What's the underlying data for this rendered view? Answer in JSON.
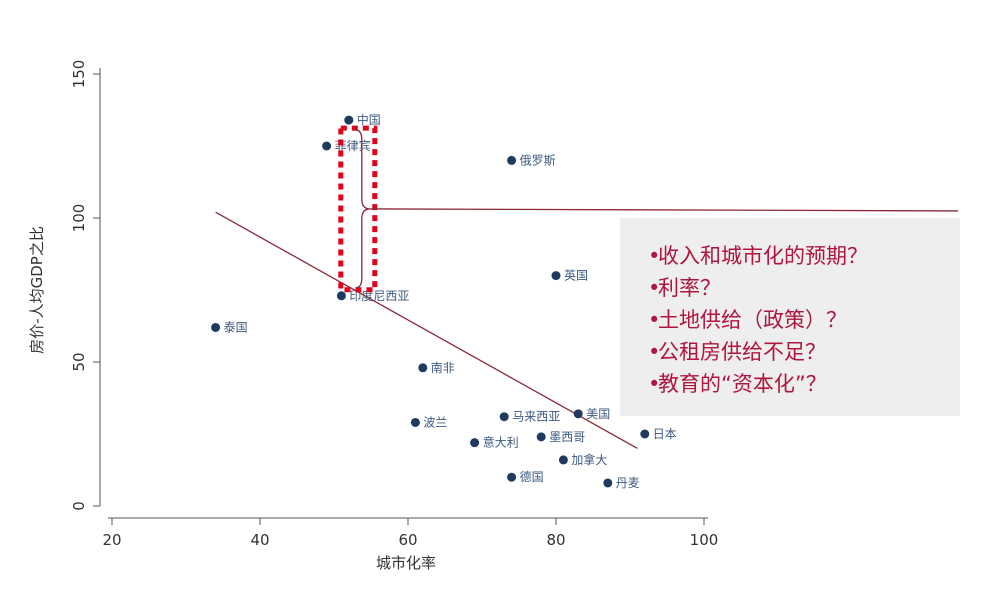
{
  "chart_data": {
    "type": "scatter",
    "xlabel": "城市化率",
    "ylabel": "房价-人均GDP之比",
    "xlim": [
      20,
      100
    ],
    "ylim": [
      0,
      150
    ],
    "xticks": [
      20,
      40,
      60,
      80,
      100
    ],
    "yticks": [
      0,
      50,
      100,
      150
    ],
    "grid": false,
    "points": [
      {
        "label": "中国",
        "x": 52,
        "y": 134
      },
      {
        "label": "菲律宾",
        "x": 49,
        "y": 125
      },
      {
        "label": "俄罗斯",
        "x": 74,
        "y": 120
      },
      {
        "label": "英国",
        "x": 80,
        "y": 80
      },
      {
        "label": "印度尼西亚",
        "x": 51,
        "y": 73
      },
      {
        "label": "泰国",
        "x": 34,
        "y": 62
      },
      {
        "label": "南非",
        "x": 62,
        "y": 48
      },
      {
        "label": "美国",
        "x": 83,
        "y": 32
      },
      {
        "label": "马来西亚",
        "x": 73,
        "y": 31
      },
      {
        "label": "波兰",
        "x": 61,
        "y": 29
      },
      {
        "label": "日本",
        "x": 92,
        "y": 25
      },
      {
        "label": "墨西哥",
        "x": 78,
        "y": 24
      },
      {
        "label": "意大利",
        "x": 69,
        "y": 22
      },
      {
        "label": "加拿大",
        "x": 81,
        "y": 16
      },
      {
        "label": "德国",
        "x": 74,
        "y": 10
      },
      {
        "label": "丹麦",
        "x": 87,
        "y": 8
      }
    ],
    "fit_line": {
      "x": [
        34,
        91
      ],
      "y": [
        102,
        20
      ]
    },
    "colors": {
      "points": "#1f3a5f",
      "fit_line": "#8a2a3b",
      "highlight": "#e0001b",
      "axis": "#555555"
    }
  },
  "callout": {
    "bullet": "•",
    "items": [
      "收入和城市化的预期？",
      "利率？",
      "土地供给（政策）？",
      "公租房供给不足？",
      "教育的“资本化”？"
    ],
    "text_color": "#b0153d",
    "background": "#eeeeef"
  }
}
